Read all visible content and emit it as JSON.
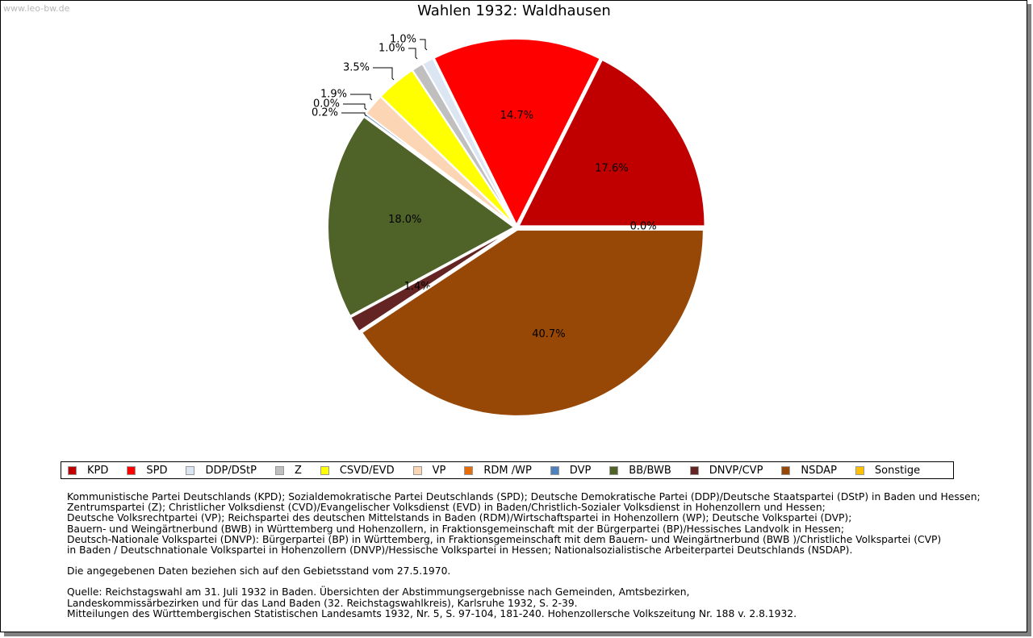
{
  "watermark": "www.leo-bw.de",
  "chart_data": {
    "type": "pie",
    "title": "Wahlen 1932: Waldhausen",
    "categories": [
      "KPD",
      "SPD",
      "DDP/DStP",
      "Z",
      "CSVD/EVD",
      "VP",
      "RDM /WP",
      "DVP",
      "BB/BWB",
      "DNVP/CVP",
      "NSDAP",
      "Sonstige"
    ],
    "values": [
      17.6,
      14.7,
      1.0,
      1.0,
      3.5,
      1.9,
      0.0,
      0.2,
      18.0,
      1.4,
      40.7,
      0.0
    ],
    "labels": [
      "17.6%",
      "14.7%",
      "1.0%",
      "1.0%",
      "3.5%",
      "1.9%",
      "0.0%",
      "0.2%",
      "18.0%",
      "1.4%",
      "40.7%",
      "0.0%"
    ],
    "colors": [
      "#c00000",
      "#ff0000",
      "#dce6f2",
      "#bfbfbf",
      "#ffff00",
      "#fcd5b4",
      "#e46c0a",
      "#4f81bd",
      "#4f6228",
      "#632423",
      "#974806",
      "#ffc000"
    ],
    "legend_position": "bottom"
  },
  "notes": {
    "definition_lines": [
      "Kommunistische Partei Deutschlands (KPD); Sozialdemokratische Partei Deutschlands (SPD); Deutsche Demokratische Partei (DDP)/Deutsche Staatspartei (DStP) in Baden und Hessen;",
      "Zentrumspartei (Z); Christlicher Volksdienst (CVD)/Evangelischer Volksdienst (EVD) in Baden/Christlich-Sozialer Volksdienst in Hohenzollern und Hessen;",
      "Deutsche Volksrechtpartei (VP); Reichspartei des deutschen Mittelstands in Baden (RDM)/Wirtschaftspartei in Hohenzollern (WP); Deutsche Volkspartei (DVP);",
      "Bauern- und Weingärtnerbund (BWB) in Württemberg und Hohenzollern, in Fraktionsgemeinschaft mit der Bürgerpartei (BP)/Hessisches Landvolk in Hessen;",
      "Deutsch-Nationale Volkspartei (DNVP): Bürgerpartei (BP) in Württemberg, in Fraktionsgemeinschaft mit dem Bauern- und Weingärtnerbund (BWB )/Christliche Volkspartei (CVP)",
      "in Baden / Deutschnationale Volkspartei in Hohenzollern (DNVP)/Hessische Volkspartei in Hessen; Nationalsozialistische Arbeiterpartei Deutschlands (NSDAP)."
    ],
    "territory": "Die angegebenen Daten beziehen sich auf den Gebietsstand vom 27.5.1970.",
    "source_lines": [
      "Quelle: Reichstagswahl am 31. Juli 1932 in Baden. Übersichten der Abstimmungsergebnisse nach Gemeinden, Amtsbezirken,",
      "Landeskommissärbezirken und für das Land Baden (32. Reichstagswahlkreis), Karlsruhe 1932, S. 2-39.",
      "Mitteilungen des Württembergischen Statistischen Landesamts 1932, Nr. 5, S. 97-104, 181-240. Hohenzollersche Volkszeitung Nr. 188 v. 2.8.1932."
    ]
  }
}
